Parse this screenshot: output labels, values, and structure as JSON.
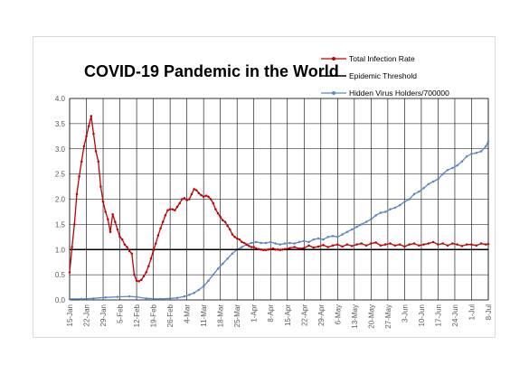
{
  "chart_data": {
    "type": "line",
    "title": "COVID-19 Pandemic in the World",
    "xlabel": "",
    "ylabel": "",
    "ylim": [
      0,
      4.0
    ],
    "y_ticks": [
      "0.0",
      "0.5",
      "1.0",
      "1.5",
      "2.0",
      "2.5",
      "3.0",
      "3.5",
      "4.0"
    ],
    "x_ticks": [
      "15-Jan",
      "22-Jan",
      "29-Jan",
      "5-Feb",
      "12-Feb",
      "19-Feb",
      "26-Feb",
      "4-Mar",
      "11-Mar",
      "18-Mar",
      "25-Mar",
      "1-Apr",
      "8-Apr",
      "15-Apr",
      "22-Apr",
      "29-Apr",
      "6-May",
      "13-May",
      "20-May",
      "27-May",
      "3-Jun",
      "10-Jun",
      "17-Jun",
      "24-Jun",
      "1-Jul",
      "8-Jul"
    ],
    "x_range_days": [
      0,
      175
    ],
    "legend_position": "top-right",
    "grid": true,
    "series": [
      {
        "name": "Total Infection Rate",
        "color": "#c00000",
        "marker": "circle",
        "points": [
          [
            0,
            0.55
          ],
          [
            1,
            1.05
          ],
          [
            2,
            1.5
          ],
          [
            3,
            2.1
          ],
          [
            4,
            2.45
          ],
          [
            5,
            2.75
          ],
          [
            6,
            3.05
          ],
          [
            7,
            3.25
          ],
          [
            8,
            3.45
          ],
          [
            9,
            3.65
          ],
          [
            10,
            3.3
          ],
          [
            11,
            2.95
          ],
          [
            12,
            2.75
          ],
          [
            13,
            2.25
          ],
          [
            14,
            1.95
          ],
          [
            15,
            1.75
          ],
          [
            16,
            1.6
          ],
          [
            17,
            1.35
          ],
          [
            18,
            1.7
          ],
          [
            19,
            1.55
          ],
          [
            20,
            1.4
          ],
          [
            21,
            1.25
          ],
          [
            22,
            1.2
          ],
          [
            23,
            1.1
          ],
          [
            24,
            1.05
          ],
          [
            25,
            0.97
          ],
          [
            26,
            0.92
          ],
          [
            27,
            0.5
          ],
          [
            28,
            0.38
          ],
          [
            29,
            0.37
          ],
          [
            30,
            0.4
          ],
          [
            31,
            0.47
          ],
          [
            32,
            0.55
          ],
          [
            33,
            0.67
          ],
          [
            34,
            0.82
          ],
          [
            35,
            0.98
          ],
          [
            36,
            1.12
          ],
          [
            37,
            1.28
          ],
          [
            38,
            1.42
          ],
          [
            39,
            1.55
          ],
          [
            40,
            1.68
          ],
          [
            41,
            1.78
          ],
          [
            42,
            1.8
          ],
          [
            43,
            1.8
          ],
          [
            44,
            1.78
          ],
          [
            45,
            1.85
          ],
          [
            46,
            1.92
          ],
          [
            47,
            2.0
          ],
          [
            48,
            2.02
          ],
          [
            49,
            1.98
          ],
          [
            50,
            2.0
          ],
          [
            51,
            2.1
          ],
          [
            52,
            2.2
          ],
          [
            53,
            2.18
          ],
          [
            54,
            2.12
          ],
          [
            55,
            2.08
          ],
          [
            56,
            2.05
          ],
          [
            57,
            2.07
          ],
          [
            58,
            2.05
          ],
          [
            59,
            2.0
          ],
          [
            60,
            1.92
          ],
          [
            61,
            1.8
          ],
          [
            62,
            1.72
          ],
          [
            63,
            1.65
          ],
          [
            64,
            1.58
          ],
          [
            65,
            1.55
          ],
          [
            66,
            1.47
          ],
          [
            67,
            1.4
          ],
          [
            68,
            1.3
          ],
          [
            69,
            1.25
          ],
          [
            70,
            1.22
          ],
          [
            71,
            1.2
          ],
          [
            72,
            1.15
          ],
          [
            73,
            1.13
          ],
          [
            74,
            1.1
          ],
          [
            75,
            1.07
          ],
          [
            76,
            1.05
          ],
          [
            77,
            1.05
          ],
          [
            78,
            1.02
          ],
          [
            79,
            1.01
          ],
          [
            80,
            1.0
          ],
          [
            81,
            0.99
          ],
          [
            82,
            0.99
          ],
          [
            83,
            1.0
          ],
          [
            84,
            1.01
          ],
          [
            85,
            1.02
          ],
          [
            86,
            1.0
          ],
          [
            87,
            1.0
          ],
          [
            88,
            0.99
          ],
          [
            89,
            1.0
          ],
          [
            90,
            1.01
          ],
          [
            92,
            1.03
          ],
          [
            94,
            1.05
          ],
          [
            96,
            1.02
          ],
          [
            98,
            1.03
          ],
          [
            100,
            1.08
          ],
          [
            102,
            1.04
          ],
          [
            104,
            1.06
          ],
          [
            106,
            1.09
          ],
          [
            108,
            1.05
          ],
          [
            110,
            1.08
          ],
          [
            112,
            1.1
          ],
          [
            114,
            1.06
          ],
          [
            116,
            1.1
          ],
          [
            118,
            1.07
          ],
          [
            120,
            1.1
          ],
          [
            122,
            1.12
          ],
          [
            124,
            1.08
          ],
          [
            126,
            1.12
          ],
          [
            128,
            1.14
          ],
          [
            130,
            1.08
          ],
          [
            132,
            1.1
          ],
          [
            134,
            1.12
          ],
          [
            136,
            1.08
          ],
          [
            138,
            1.1
          ],
          [
            140,
            1.06
          ],
          [
            142,
            1.1
          ],
          [
            144,
            1.12
          ],
          [
            146,
            1.08
          ],
          [
            148,
            1.1
          ],
          [
            150,
            1.12
          ],
          [
            152,
            1.15
          ],
          [
            154,
            1.1
          ],
          [
            156,
            1.12
          ],
          [
            158,
            1.08
          ],
          [
            160,
            1.12
          ],
          [
            162,
            1.1
          ],
          [
            164,
            1.07
          ],
          [
            166,
            1.1
          ],
          [
            168,
            1.1
          ],
          [
            170,
            1.08
          ],
          [
            172,
            1.12
          ],
          [
            174,
            1.1
          ],
          [
            175,
            1.11
          ]
        ]
      },
      {
        "name": "Epidemic Threshold",
        "color": "#000000",
        "marker": "none",
        "points": [
          [
            0,
            1.0
          ],
          [
            175,
            1.0
          ]
        ]
      },
      {
        "name": "Hidden Virus Holders/700000",
        "color": "#5b86c5",
        "marker": "circle",
        "points": [
          [
            0,
            0.02
          ],
          [
            5,
            0.02
          ],
          [
            10,
            0.03
          ],
          [
            15,
            0.05
          ],
          [
            20,
            0.06
          ],
          [
            25,
            0.07
          ],
          [
            28,
            0.06
          ],
          [
            32,
            0.03
          ],
          [
            38,
            0.02
          ],
          [
            42,
            0.03
          ],
          [
            45,
            0.04
          ],
          [
            48,
            0.07
          ],
          [
            50,
            0.1
          ],
          [
            52,
            0.14
          ],
          [
            54,
            0.2
          ],
          [
            56,
            0.27
          ],
          [
            58,
            0.38
          ],
          [
            60,
            0.5
          ],
          [
            62,
            0.62
          ],
          [
            64,
            0.72
          ],
          [
            66,
            0.82
          ],
          [
            68,
            0.92
          ],
          [
            70,
            1.0
          ],
          [
            72,
            1.05
          ],
          [
            74,
            1.1
          ],
          [
            76,
            1.13
          ],
          [
            78,
            1.15
          ],
          [
            80,
            1.13
          ],
          [
            82,
            1.13
          ],
          [
            84,
            1.15
          ],
          [
            86,
            1.12
          ],
          [
            88,
            1.1
          ],
          [
            90,
            1.12
          ],
          [
            92,
            1.13
          ],
          [
            94,
            1.12
          ],
          [
            96,
            1.15
          ],
          [
            98,
            1.17
          ],
          [
            100,
            1.15
          ],
          [
            102,
            1.2
          ],
          [
            104,
            1.22
          ],
          [
            106,
            1.2
          ],
          [
            108,
            1.25
          ],
          [
            110,
            1.27
          ],
          [
            112,
            1.25
          ],
          [
            114,
            1.3
          ],
          [
            116,
            1.35
          ],
          [
            118,
            1.4
          ],
          [
            120,
            1.45
          ],
          [
            122,
            1.5
          ],
          [
            124,
            1.55
          ],
          [
            126,
            1.6
          ],
          [
            128,
            1.68
          ],
          [
            130,
            1.73
          ],
          [
            132,
            1.75
          ],
          [
            134,
            1.8
          ],
          [
            136,
            1.83
          ],
          [
            138,
            1.88
          ],
          [
            140,
            1.95
          ],
          [
            142,
            2.0
          ],
          [
            144,
            2.1
          ],
          [
            146,
            2.15
          ],
          [
            148,
            2.22
          ],
          [
            150,
            2.3
          ],
          [
            152,
            2.35
          ],
          [
            154,
            2.4
          ],
          [
            156,
            2.5
          ],
          [
            158,
            2.58
          ],
          [
            160,
            2.62
          ],
          [
            162,
            2.67
          ],
          [
            164,
            2.75
          ],
          [
            166,
            2.85
          ],
          [
            168,
            2.9
          ],
          [
            170,
            2.92
          ],
          [
            172,
            2.95
          ],
          [
            174,
            3.05
          ],
          [
            175,
            3.15
          ]
        ]
      }
    ]
  }
}
